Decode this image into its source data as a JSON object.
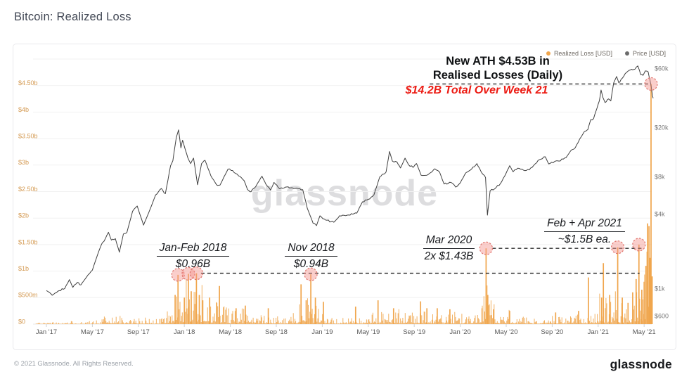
{
  "page": {
    "title": "Bitcoin: Realized Loss",
    "watermark": "glassnode",
    "footer_left": "© 2021 Glassnode. All Rights Reserved.",
    "footer_logo": "glassnode"
  },
  "legend": {
    "items": [
      {
        "label": "Realized Loss [USD]",
        "color": "#F0A64D"
      },
      {
        "label": "Price [USD]",
        "color": "#6B6B6B"
      }
    ]
  },
  "annotations": {
    "ath_line1": "New ATH $4.53B in",
    "ath_line2": "Realised Losses (Daily)",
    "week21": "$14.2B Total Over Week 21",
    "week21_color": "#EC1B13",
    "janfeb2018_title": "Jan-Feb 2018",
    "janfeb2018_value": "$0.96B",
    "nov2018_title": "Nov 2018",
    "nov2018_value": "$0.94B",
    "mar2020_title": "Mar 2020",
    "mar2020_value": "2x $1.43B",
    "febapr2021_title": "Feb + Apr 2021",
    "febapr2021_value": "~$1.5B ea."
  },
  "chart_data": {
    "type": "combo",
    "title": "Bitcoin: Realized Loss",
    "x_axis": {
      "start": "Jan 2017",
      "end": "May 2021",
      "tick_labels": [
        "Jan '17",
        "May '17",
        "Sep '17",
        "Jan '18",
        "May '18",
        "Sep '18",
        "Jan '19",
        "May '19",
        "Sep '19",
        "Jan '20",
        "May '20",
        "Sep '20",
        "Jan '21",
        "May '21"
      ],
      "tick_month_offsets": [
        0,
        4,
        8,
        12,
        16,
        20,
        24,
        28,
        32,
        36,
        40,
        44,
        48,
        52
      ]
    },
    "left_axis": {
      "title": "Realized Loss [USD]",
      "scale": "linear",
      "tick_labels": [
        "$4.50b",
        "$4b",
        "$3.50b",
        "$3b",
        "$2.50b",
        "$2b",
        "$1.50b",
        "$1b",
        "$500m",
        "$0"
      ],
      "tick_values_b": [
        4.5,
        4,
        3.5,
        3,
        2.5,
        2,
        1.5,
        1,
        0.5,
        0
      ],
      "range_b": [
        0,
        5
      ],
      "label_color": "#D49A52"
    },
    "right_axis": {
      "title": "Price [USD]",
      "scale": "log",
      "tick_labels": [
        "$60k",
        "$20k",
        "$8k",
        "$4k",
        "$1k",
        "$600"
      ],
      "tick_values": [
        60000,
        20000,
        8000,
        4000,
        1000,
        600
      ],
      "range": [
        600,
        72000
      ],
      "label_color": "#787878"
    },
    "realized_loss": {
      "name": "Realized Loss [USD]",
      "unit": "USD billions (daily)",
      "color": "#F0A64D",
      "monthly_typical_max_b": [
        0.025,
        0.02,
        0.05,
        0.03,
        0.05,
        0.09,
        0.11,
        0.05,
        0.13,
        0.05,
        0.1,
        0.3,
        0.45,
        0.42,
        0.3,
        0.25,
        0.15,
        0.2,
        0.12,
        0.15,
        0.1,
        0.07,
        0.35,
        0.3,
        0.12,
        0.08,
        0.07,
        0.1,
        0.15,
        0.15,
        0.2,
        0.15,
        0.2,
        0.15,
        0.13,
        0.15,
        0.1,
        0.13,
        0.55,
        0.15,
        0.15,
        0.1,
        0.08,
        0.1,
        0.12,
        0.08,
        0.12,
        0.1,
        0.3,
        0.35,
        0.25,
        0.45,
        0.9
      ],
      "spikes_t_b": [
        [
          11.2,
          0.55
        ],
        [
          11.45,
          0.93
        ],
        [
          12.0,
          0.5
        ],
        [
          12.35,
          0.95
        ],
        [
          12.6,
          0.62
        ],
        [
          13.05,
          0.96
        ],
        [
          13.3,
          0.55
        ],
        [
          13.6,
          0.45
        ],
        [
          14.2,
          0.5
        ],
        [
          15.05,
          0.72
        ],
        [
          16.5,
          0.3
        ],
        [
          17.3,
          0.35
        ],
        [
          19.3,
          0.3
        ],
        [
          22.15,
          0.75
        ],
        [
          22.6,
          0.45
        ],
        [
          23.0,
          0.94
        ],
        [
          23.4,
          0.5
        ],
        [
          24.1,
          0.42
        ],
        [
          26.9,
          0.33
        ],
        [
          28.85,
          0.45
        ],
        [
          30.2,
          0.3
        ],
        [
          32.55,
          0.43
        ],
        [
          33.1,
          0.3
        ],
        [
          34.0,
          0.3
        ],
        [
          35.1,
          0.28
        ],
        [
          37.9,
          0.3
        ],
        [
          38.25,
          1.43
        ],
        [
          38.4,
          0.55
        ],
        [
          38.9,
          0.28
        ],
        [
          40.3,
          0.25
        ],
        [
          44.3,
          0.22
        ],
        [
          46.3,
          0.25
        ],
        [
          47.15,
          0.88
        ],
        [
          48.3,
          0.5
        ],
        [
          48.45,
          1.15
        ],
        [
          49.0,
          0.55
        ],
        [
          49.7,
          1.45
        ],
        [
          50.1,
          0.5
        ],
        [
          50.6,
          0.4
        ],
        [
          51.0,
          0.6
        ],
        [
          51.3,
          0.85
        ],
        [
          51.55,
          1.5
        ],
        [
          51.8,
          0.65
        ],
        [
          52.0,
          0.8
        ],
        [
          52.15,
          1.1
        ],
        [
          52.3,
          1.9
        ],
        [
          52.42,
          1.85
        ],
        [
          52.5,
          1.25
        ],
        [
          52.6,
          4.53
        ],
        [
          52.7,
          0.9
        ]
      ],
      "highlighted_spikes": [
        {
          "label": "Jan 2018",
          "t": 11.45,
          "value_b": 0.93
        },
        {
          "label": "Jan 2018",
          "t": 12.35,
          "value_b": 0.95
        },
        {
          "label": "Feb 2018",
          "t": 13.05,
          "value_b": 0.96
        },
        {
          "label": "Nov 2018",
          "t": 23.0,
          "value_b": 0.94
        },
        {
          "label": "Mar 2020",
          "t": 38.25,
          "value_b": 1.43
        },
        {
          "label": "Feb 2021",
          "t": 49.7,
          "value_b": 1.45
        },
        {
          "label": "Apr 2021",
          "t": 51.55,
          "value_b": 1.5
        },
        {
          "label": "May 2021 ATH",
          "t": 52.6,
          "value_b": 4.53
        }
      ],
      "dashed_level_lines": [
        {
          "value_b": 0.96,
          "t_from": 13.45,
          "t_to": 51.6
        },
        {
          "value_b": 1.43,
          "t_from": 38.8,
          "t_to": 52.0
        },
        {
          "value_b": 4.53,
          "t_from": 33.35,
          "t_to": 52.35
        }
      ]
    },
    "price": {
      "name": "Price [USD]",
      "color": "#3F3F3F",
      "points_t_usd": [
        [
          0,
          970
        ],
        [
          0.5,
          890
        ],
        [
          1,
          960
        ],
        [
          1.6,
          1010
        ],
        [
          2,
          1190
        ],
        [
          2.3,
          1030
        ],
        [
          2.7,
          1130
        ],
        [
          3,
          1080
        ],
        [
          3.5,
          1250
        ],
        [
          4,
          1420
        ],
        [
          4.5,
          1950
        ],
        [
          4.8,
          2300
        ],
        [
          5,
          2420
        ],
        [
          5.4,
          2870
        ],
        [
          5.65,
          2480
        ],
        [
          6,
          2550
        ],
        [
          6.35,
          1980
        ],
        [
          6.7,
          2780
        ],
        [
          7,
          2860
        ],
        [
          7.5,
          4250
        ],
        [
          7.9,
          4680
        ],
        [
          8.45,
          3280
        ],
        [
          9,
          4370
        ],
        [
          9.5,
          5750
        ],
        [
          10,
          6480
        ],
        [
          10.35,
          5880
        ],
        [
          10.8,
          9900
        ],
        [
          11,
          10900
        ],
        [
          11.3,
          16800
        ],
        [
          11.5,
          19300
        ],
        [
          11.7,
          13800
        ],
        [
          11.85,
          15900
        ],
        [
          12,
          14200
        ],
        [
          12.3,
          11500
        ],
        [
          12.55,
          10300
        ],
        [
          12.8,
          11400
        ],
        [
          13.15,
          6950
        ],
        [
          13.5,
          10300
        ],
        [
          13.8,
          10950
        ],
        [
          14.3,
          8250
        ],
        [
          14.8,
          6950
        ],
        [
          15.1,
          6900
        ],
        [
          15.8,
          9300
        ],
        [
          16.2,
          9050
        ],
        [
          16.6,
          8450
        ],
        [
          17.2,
          7500
        ],
        [
          17.5,
          6350
        ],
        [
          17.8,
          6100
        ],
        [
          18.2,
          6700
        ],
        [
          18.75,
          8150
        ],
        [
          19.1,
          7000
        ],
        [
          19.5,
          6300
        ],
        [
          19.8,
          7250
        ],
        [
          20.3,
          6450
        ],
        [
          20.8,
          6650
        ],
        [
          21.5,
          6480
        ],
        [
          22.3,
          6350
        ],
        [
          22.7,
          4480
        ],
        [
          23.2,
          3400
        ],
        [
          23.5,
          3250
        ],
        [
          23.8,
          3900
        ],
        [
          24.3,
          3600
        ],
        [
          25,
          3460
        ],
        [
          25.5,
          3900
        ],
        [
          26.3,
          3960
        ],
        [
          27,
          4100
        ],
        [
          27.5,
          5060
        ],
        [
          28,
          5300
        ],
        [
          28.5,
          5780
        ],
        [
          29,
          8050
        ],
        [
          29.55,
          8800
        ],
        [
          29.85,
          12900
        ],
        [
          30.1,
          10800
        ],
        [
          30.5,
          10600
        ],
        [
          30.8,
          9500
        ],
        [
          31.2,
          11400
        ],
        [
          31.5,
          10100
        ],
        [
          31.9,
          9600
        ],
        [
          32.2,
          10300
        ],
        [
          32.6,
          8300
        ],
        [
          33.1,
          8300
        ],
        [
          33.8,
          9350
        ],
        [
          34.2,
          8800
        ],
        [
          34.6,
          7050
        ],
        [
          35.2,
          7250
        ],
        [
          35.6,
          6650
        ],
        [
          36,
          7200
        ],
        [
          36.5,
          8700
        ],
        [
          37,
          9350
        ],
        [
          37.45,
          10300
        ],
        [
          37.9,
          8600
        ],
        [
          38.2,
          7950
        ],
        [
          38.37,
          3950
        ],
        [
          38.6,
          6200
        ],
        [
          39,
          6450
        ],
        [
          39.5,
          7100
        ],
        [
          40,
          8650
        ],
        [
          40.3,
          9900
        ],
        [
          40.6,
          8850
        ],
        [
          41,
          9450
        ],
        [
          41.5,
          9120
        ],
        [
          42,
          9150
        ],
        [
          42.9,
          11100
        ],
        [
          43.4,
          11700
        ],
        [
          43.7,
          10250
        ],
        [
          44.2,
          10700
        ],
        [
          44.6,
          10800
        ],
        [
          45.2,
          11500
        ],
        [
          45.6,
          13050
        ],
        [
          46,
          13800
        ],
        [
          46.4,
          16300
        ],
        [
          46.8,
          18700
        ],
        [
          47.1,
          19400
        ],
        [
          47.35,
          23300
        ],
        [
          47.6,
          23800
        ],
        [
          47.9,
          29000
        ],
        [
          48.1,
          33000
        ],
        [
          48.25,
          40500
        ],
        [
          48.4,
          35500
        ],
        [
          48.6,
          32100
        ],
        [
          48.9,
          34300
        ],
        [
          49.1,
          33100
        ],
        [
          49.35,
          46300
        ],
        [
          49.6,
          52100
        ],
        [
          49.8,
          46300
        ],
        [
          50.1,
          50400
        ],
        [
          50.35,
          54900
        ],
        [
          50.6,
          57600
        ],
        [
          50.8,
          58800
        ],
        [
          51,
          58900
        ],
        [
          51.2,
          59700
        ],
        [
          51.45,
          63500
        ],
        [
          51.7,
          54000
        ],
        [
          51.9,
          53200
        ],
        [
          52.1,
          57800
        ],
        [
          52.35,
          56800
        ],
        [
          52.5,
          49000
        ],
        [
          52.62,
          43000
        ],
        [
          52.72,
          36500
        ],
        [
          52.78,
          34800
        ]
      ]
    }
  }
}
